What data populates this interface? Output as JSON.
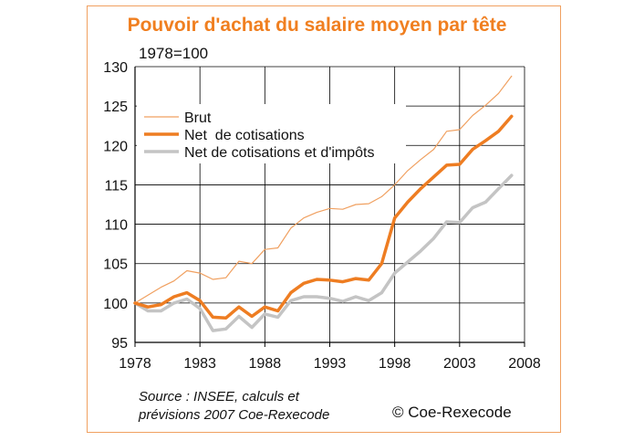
{
  "chart_data": {
    "type": "line",
    "title": "Pouvoir d'achat du salaire moyen par tête",
    "subtitle": "1978=100",
    "xlabel": "",
    "ylabel": "",
    "xlim": [
      1978,
      2008
    ],
    "ylim": [
      95,
      130
    ],
    "xticks": [
      "1978",
      "1983",
      "1988",
      "1993",
      "1998",
      "2003",
      "2008"
    ],
    "yticks": [
      "95",
      "100",
      "105",
      "110",
      "115",
      "120",
      "125",
      "130"
    ],
    "grid": true,
    "legend_position": "top-left",
    "x": [
      1978,
      1979,
      1980,
      1981,
      1982,
      1983,
      1984,
      1985,
      1986,
      1987,
      1988,
      1989,
      1990,
      1991,
      1992,
      1993,
      1994,
      1995,
      1996,
      1997,
      1998,
      1999,
      2000,
      2001,
      2002,
      2003,
      2004,
      2005,
      2006,
      2007
    ],
    "series": [
      {
        "name": "Brut",
        "color": "#f0a060",
        "width": 1.2,
        "values": [
          100,
          101.0,
          102.0,
          102.8,
          104.1,
          103.8,
          103.0,
          103.2,
          105.3,
          105.0,
          106.8,
          107.0,
          109.5,
          110.8,
          111.5,
          112.0,
          111.9,
          112.5,
          112.6,
          113.5,
          115.0,
          116.8,
          118.2,
          119.5,
          121.8,
          122.0,
          123.8,
          125.1,
          126.6,
          128.8
        ]
      },
      {
        "name": "Net  de cotisations",
        "color": "#ee7d22",
        "width": 3.5,
        "values": [
          100,
          99.5,
          99.8,
          100.8,
          101.3,
          100.3,
          98.2,
          98.1,
          99.5,
          98.3,
          99.5,
          99.0,
          101.3,
          102.5,
          103.0,
          102.9,
          102.7,
          103.1,
          102.9,
          105.0,
          110.8,
          112.8,
          114.5,
          116.0,
          117.5,
          117.6,
          119.5,
          120.6,
          121.8,
          123.7
        ]
      },
      {
        "name": "Net de cotisations et d'impôts",
        "color": "#c4c4c4",
        "width": 3.5,
        "values": [
          100,
          99.0,
          99.0,
          100.0,
          100.5,
          99.3,
          96.5,
          96.7,
          98.3,
          96.9,
          98.6,
          98.2,
          100.3,
          100.8,
          100.8,
          100.6,
          100.2,
          100.8,
          100.3,
          101.3,
          103.8,
          105.2,
          106.6,
          108.2,
          110.3,
          110.2,
          112.1,
          112.8,
          114.5,
          116.2
        ]
      }
    ]
  },
  "source": {
    "line1": "Source : INSEE, calculs et",
    "line2": "prévisions 2007 Coe-Rexecode"
  },
  "copyright": "© Coe-Rexecode",
  "colors": {
    "title": "#f07f20",
    "frame": "#f0a060",
    "grid": "#000000"
  }
}
